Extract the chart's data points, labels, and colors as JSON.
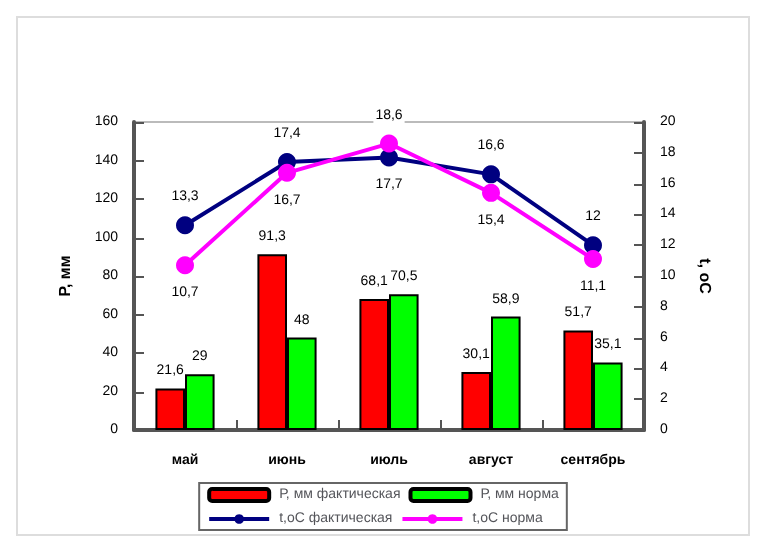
{
  "chart_data": {
    "type": "bar",
    "categories": [
      "май",
      "июнь",
      "июль",
      "август",
      "сентябрь"
    ],
    "ylabel": "Р, мм",
    "y2label": "t, oC",
    "series": [
      {
        "name": "Р, мм фактическая",
        "color": "#ff0000",
        "values": [
          21.6,
          91.3,
          68.1,
          30.1,
          51.7
        ],
        "value_labels": [
          "21,6",
          "91,3",
          "68,1",
          "30,1",
          "51,7"
        ]
      },
      {
        "name": "Р, мм норма",
        "color": "#00ff00",
        "values": [
          29,
          48,
          70.5,
          58.9,
          35.1
        ],
        "value_labels": [
          "29",
          "48",
          "70,5",
          "58,9",
          "35,1"
        ]
      },
      {
        "name": "t,oC фактическая",
        "type": "line",
        "axis": "y2",
        "color": "#000080",
        "values": [
          13.3,
          17.4,
          17.7,
          16.6,
          12
        ],
        "value_labels": [
          "13,3",
          "17,4",
          "17,7",
          "16,6",
          "12"
        ]
      },
      {
        "name": "t,oC норма",
        "type": "line",
        "axis": "y2",
        "color": "#ff00ff",
        "values": [
          10.7,
          16.7,
          18.6,
          15.4,
          11.1
        ],
        "value_labels": [
          "10,7",
          "16,7",
          "18,6",
          "15,4",
          "11,1"
        ]
      }
    ],
    "ylim": [
      0,
      160
    ],
    "yticks": [
      0,
      20,
      40,
      60,
      80,
      100,
      120,
      140,
      160
    ],
    "y2lim": [
      0,
      20
    ],
    "y2ticks": [
      0,
      2,
      4,
      6,
      8,
      10,
      12,
      14,
      16,
      18,
      20
    ],
    "grid": false,
    "legend": "bottom",
    "marker": "circle"
  }
}
